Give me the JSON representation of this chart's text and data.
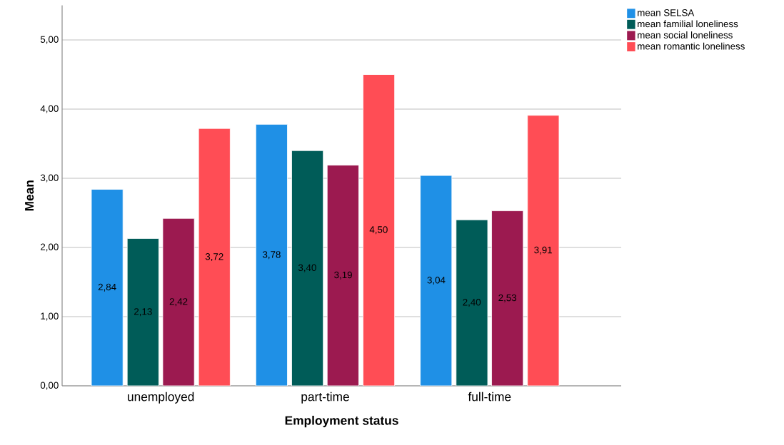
{
  "chart_data": {
    "type": "bar",
    "xlabel": "Employment status",
    "ylabel": "Mean",
    "categories": [
      "unemployed",
      "part-time",
      "full-time"
    ],
    "series": [
      {
        "name": "mean SELSA",
        "color": "#1f90e6",
        "values": [
          2.84,
          3.78,
          3.04
        ],
        "value_labels": [
          "2,84",
          "3,78",
          "3,04"
        ]
      },
      {
        "name": "mean familial loneliness",
        "color": "#005c58",
        "values": [
          2.13,
          3.4,
          2.4
        ],
        "value_labels": [
          "2,13",
          "3,40",
          "2,40"
        ]
      },
      {
        "name": "mean social loneliness",
        "color": "#9c1a50",
        "values": [
          2.42,
          3.19,
          2.53
        ],
        "value_labels": [
          "2,42",
          "3,19",
          "2,53"
        ]
      },
      {
        "name": "mean romantic loneliness",
        "color": "#ff4d55",
        "values": [
          3.72,
          4.5,
          3.91
        ],
        "value_labels": [
          "3,72",
          "4,50",
          "3,91"
        ]
      }
    ],
    "ylim": [
      0,
      5.5
    ],
    "yticks": [
      {
        "value": 0,
        "label": "0,00"
      },
      {
        "value": 1,
        "label": "1,00"
      },
      {
        "value": 2,
        "label": "2,00"
      },
      {
        "value": 3,
        "label": "3,00"
      },
      {
        "value": 4,
        "label": "4,00"
      },
      {
        "value": 5,
        "label": "5,00"
      }
    ],
    "grid": "y",
    "legend": "top right"
  }
}
